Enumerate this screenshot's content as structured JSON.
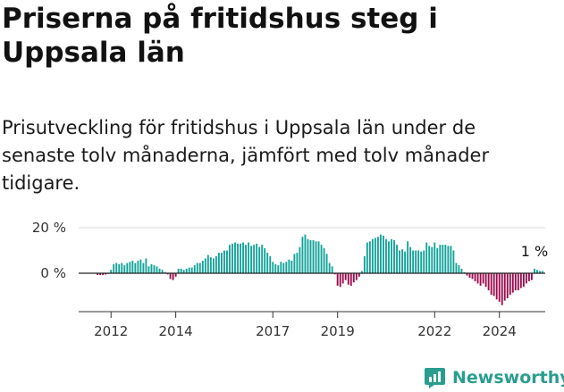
{
  "title": "Priserna på fritidshus steg i Uppsala län",
  "subtitle": "Prisutveckling för fritidshus i Uppsala län under de senaste tolv månaderna, jämfört med tolv månader tidigare.",
  "brand": {
    "name": "Newsworthy",
    "icon": "newsworthy-chart-icon",
    "color": "#2a9d8f"
  },
  "colors": {
    "positive": "#12a39a",
    "negative": "#9b0c4f",
    "baseline": "#222222",
    "axis": "#333333"
  },
  "chart_data": {
    "type": "bar",
    "x_start": "2011-01",
    "x_end": "2025-06",
    "ylim": [
      -17,
      24
    ],
    "yticks": [
      {
        "value": 20,
        "label": "20 %"
      },
      {
        "value": 0,
        "label": "0 %"
      }
    ],
    "xticks": [
      {
        "date": "2012-01",
        "label": "2012"
      },
      {
        "date": "2014-01",
        "label": "2014"
      },
      {
        "date": "2017-01",
        "label": "2017"
      },
      {
        "date": "2019-01",
        "label": "2019"
      },
      {
        "date": "2022-01",
        "label": "2022"
      },
      {
        "date": "2024-01",
        "label": "2024"
      }
    ],
    "series": [
      {
        "start": "2011-08",
        "values": [
          -0.8,
          -0.8,
          -0.8,
          -0.6,
          -0.3,
          1.5,
          4.0,
          4.5,
          4.0,
          4.5,
          3.5,
          4.5,
          5.0,
          5.5,
          4.5,
          5.5,
          6.0,
          4.5,
          6.5,
          3.0,
          4.0,
          3.5,
          3.0,
          2.0,
          1.5,
          0.5,
          -0.5,
          -2.5,
          -3.0,
          -1.5,
          2.0,
          2.0,
          1.5,
          2.0,
          2.5,
          2.5,
          3.5,
          4.5,
          4.5,
          5.5,
          6.5,
          8.0,
          7.0,
          6.5,
          7.5,
          9.0,
          9.0,
          10.0,
          10.0,
          12.5,
          13.0,
          13.5,
          13.0,
          13.0,
          13.5,
          12.5,
          13.5,
          12.0,
          12.5,
          13.0,
          11.5,
          12.5,
          11.0,
          9.0,
          7.5,
          5.0,
          4.0,
          3.5,
          5.0,
          4.5,
          5.0,
          6.0,
          5.5,
          8.5,
          9.0,
          11.5,
          16.0,
          17.0,
          15.0,
          14.5,
          14.5,
          14.0,
          14.0,
          12.5,
          11.0,
          8.5,
          4.5,
          3.0,
          -0.5,
          -5.5,
          -6.0,
          -4.5,
          -3.0,
          -5.0,
          -5.5,
          -4.0,
          -3.0,
          -1.5,
          1.0,
          7.5,
          13.5,
          14.0,
          15.0,
          15.5,
          16.0,
          17.0,
          16.5,
          15.0,
          14.0,
          15.0,
          14.5,
          12.5,
          10.0,
          10.5,
          9.5,
          14.0,
          11.5,
          10.0,
          10.0,
          10.0,
          9.5,
          10.0,
          13.5,
          12.0,
          11.5,
          13.5,
          11.0,
          12.5,
          12.5,
          12.5,
          12.0,
          12.0,
          10.0,
          4.5,
          3.5,
          2.0,
          0.5,
          -1.0,
          -2.0,
          -2.5,
          -3.5,
          -4.5,
          -5.5,
          -4.5,
          -6.0,
          -7.5,
          -9.5,
          -10.0,
          -11.5,
          -12.5,
          -14.0,
          -12.0,
          -11.0,
          -9.5,
          -8.5,
          -7.5,
          -7.5,
          -6.5,
          -6.0,
          -4.5,
          -3.5,
          -3.0,
          2.0,
          1.5,
          1.0,
          1.0
        ]
      }
    ],
    "annotations": [
      {
        "text": "1 %",
        "date": "2025-02"
      }
    ]
  }
}
